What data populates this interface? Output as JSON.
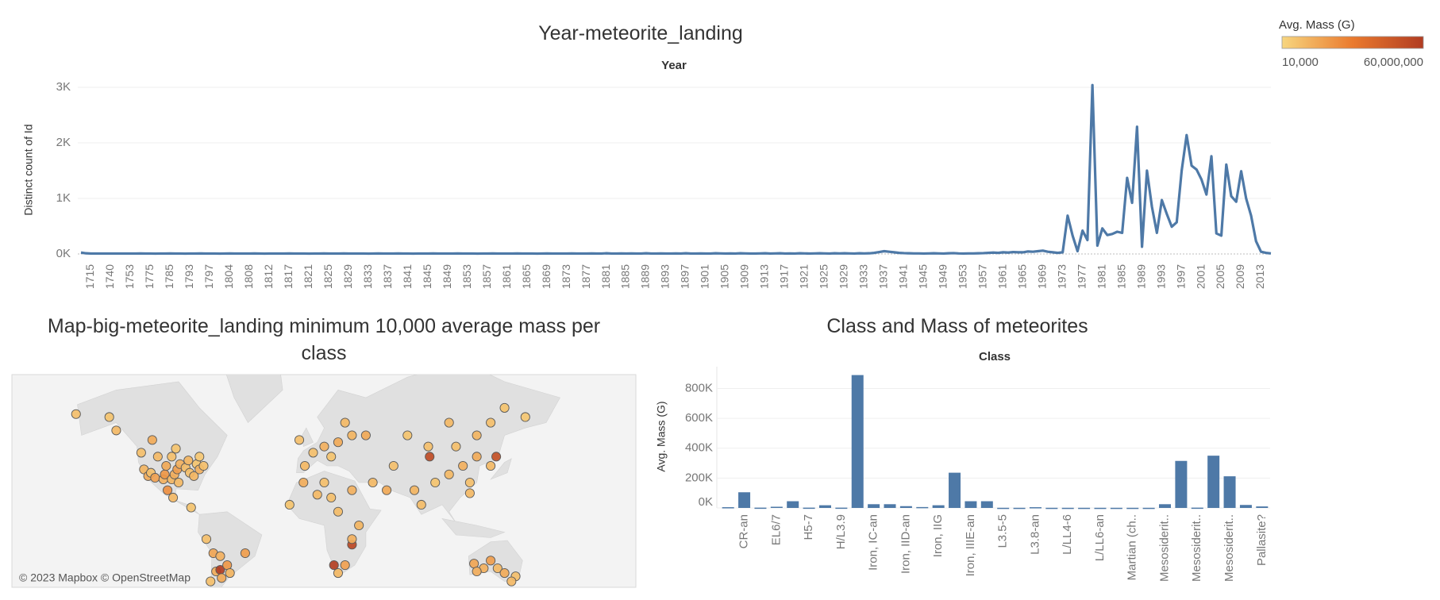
{
  "chart_data": [
    {
      "type": "line",
      "title": "Year-meteorite_landing",
      "header": "Year",
      "y_label": "Distinct count of Id",
      "color": "#4e79a7",
      "ylim": [
        0,
        3100
      ],
      "yticks": [
        {
          "value": 0,
          "label": "0K"
        },
        {
          "value": 1000,
          "label": "1K"
        },
        {
          "value": 2000,
          "label": "2K"
        },
        {
          "value": 3000,
          "label": "3K"
        }
      ],
      "grid": true,
      "categories": [
        null,
        null,
        "1715",
        null,
        null,
        null,
        "1740",
        null,
        null,
        null,
        "1753",
        null,
        null,
        null,
        "1775",
        null,
        null,
        null,
        "1785",
        null,
        null,
        null,
        "1793",
        null,
        null,
        null,
        "1797",
        null,
        null,
        null,
        "1804",
        null,
        null,
        null,
        "1808",
        null,
        null,
        null,
        "1812",
        null,
        null,
        null,
        "1817",
        null,
        null,
        null,
        "1821",
        null,
        null,
        null,
        "1825",
        null,
        null,
        null,
        "1829",
        null,
        null,
        null,
        "1833",
        null,
        null,
        null,
        "1837",
        null,
        null,
        null,
        "1841",
        null,
        null,
        null,
        "1845",
        null,
        null,
        null,
        "1849",
        null,
        null,
        null,
        "1853",
        null,
        null,
        null,
        "1857",
        null,
        null,
        null,
        "1861",
        null,
        null,
        null,
        "1865",
        null,
        null,
        null,
        "1869",
        null,
        null,
        null,
        "1873",
        null,
        null,
        null,
        "1877",
        null,
        null,
        null,
        "1881",
        null,
        null,
        null,
        "1885",
        null,
        null,
        null,
        "1889",
        null,
        null,
        null,
        "1893",
        null,
        null,
        null,
        "1897",
        null,
        null,
        null,
        "1901",
        null,
        null,
        null,
        "1905",
        null,
        null,
        null,
        "1909",
        null,
        null,
        null,
        "1913",
        null,
        null,
        null,
        "1917",
        null,
        null,
        null,
        "1921",
        null,
        null,
        null,
        "1925",
        null,
        null,
        null,
        "1929",
        null,
        null,
        null,
        "1933",
        null,
        null,
        null,
        "1937",
        null,
        null,
        null,
        "1941",
        null,
        null,
        null,
        "1945",
        null,
        null,
        null,
        "1949",
        null,
        null,
        null,
        "1953",
        null,
        null,
        null,
        "1957",
        null,
        null,
        null,
        "1961",
        null,
        null,
        null,
        "1965",
        null,
        null,
        null,
        "1969",
        null,
        null,
        null,
        "1973",
        null,
        null,
        null,
        "1977",
        null,
        null,
        null,
        "1981",
        null,
        null,
        null,
        "1985",
        null,
        null,
        null,
        "1989",
        null,
        null,
        null,
        "1993",
        null,
        null,
        null,
        "1997",
        null,
        null,
        null,
        "2001",
        null,
        null,
        null,
        "2005",
        null,
        null,
        null,
        "2009",
        null,
        null,
        null,
        "2013",
        null,
        null
      ],
      "values": [
        25,
        12,
        8,
        8,
        8,
        8,
        8,
        8,
        8,
        8,
        8,
        8,
        10,
        8,
        8,
        6,
        8,
        8,
        10,
        8,
        8,
        6,
        8,
        8,
        10,
        8,
        8,
        8,
        6,
        8,
        10,
        8,
        8,
        8,
        8,
        10,
        8,
        6,
        8,
        8,
        8,
        8,
        10,
        8,
        8,
        8,
        6,
        8,
        8,
        10,
        8,
        8,
        8,
        10,
        8,
        8,
        8,
        8,
        6,
        8,
        10,
        8,
        8,
        8,
        10,
        8,
        8,
        6,
        8,
        8,
        8,
        10,
        8,
        8,
        8,
        8,
        10,
        8,
        8,
        8,
        6,
        8,
        8,
        10,
        8,
        8,
        8,
        8,
        10,
        8,
        8,
        8,
        6,
        8,
        10,
        8,
        8,
        8,
        8,
        10,
        8,
        8,
        8,
        10,
        8,
        8,
        12,
        8,
        8,
        10,
        8,
        10,
        8,
        8,
        12,
        8,
        8,
        10,
        8,
        8,
        10,
        8,
        12,
        8,
        8,
        10,
        8,
        8,
        12,
        10,
        8,
        10,
        8,
        12,
        10,
        8,
        8,
        10,
        12,
        8,
        10,
        12,
        8,
        10,
        8,
        12,
        10,
        8,
        10,
        12,
        10,
        8,
        12,
        10,
        12,
        10,
        8,
        12,
        10,
        12,
        20,
        35,
        50,
        40,
        30,
        20,
        15,
        12,
        10,
        10,
        8,
        10,
        12,
        10,
        8,
        12,
        15,
        10,
        8,
        10,
        10,
        12,
        15,
        20,
        25,
        20,
        30,
        25,
        35,
        30,
        30,
        45,
        40,
        50,
        60,
        40,
        30,
        20,
        30,
        690,
        330,
        50,
        420,
        250,
        3040,
        150,
        460,
        340,
        360,
        400,
        380,
        1370,
        920,
        2290,
        130,
        1500,
        850,
        380,
        970,
        720,
        490,
        570,
        1500,
        2140,
        1590,
        1520,
        1340,
        1070,
        1760,
        370,
        330,
        1610,
        1040,
        940,
        1490,
        1000,
        690,
        230,
        40,
        20,
        10
      ]
    },
    {
      "type": "map",
      "title": "Map-big-meteorite_landing minimum 10,000 average mass per class",
      "attribution": "© 2023 Mapbox © OpenStreetMap",
      "color_scale": {
        "title": "Avg. Mass (G)",
        "min": {
          "value": 10000,
          "label": "10,000"
        },
        "max": {
          "value": 60000000,
          "label": "60,000,000"
        },
        "colors": [
          "#f7d67f",
          "#ea7a2e",
          "#b13c22"
        ]
      },
      "lon": [
        -169,
        -145,
        -140,
        -122,
        -120,
        -117,
        -115,
        -112,
        -110,
        -106,
        -105,
        -104,
        -100,
        -100,
        -98,
        -97,
        -96,
        -95,
        -94,
        -90,
        -88,
        -87,
        -84,
        -82,
        -80,
        -77,
        -114,
        -80,
        -103,
        -99,
        -86,
        -70,
        -65,
        -68,
        -65,
        -60,
        -58,
        -64,
        -72,
        -47,
        -75,
        -4,
        2,
        10,
        20,
        30,
        15,
        25,
        40,
        -8,
        -5,
        5,
        10,
        30,
        20,
        -15,
        35,
        30,
        25,
        20,
        17,
        15,
        30,
        45,
        55,
        60,
        75,
        80,
        90,
        86,
        100,
        110,
        115,
        120,
        130,
        134,
        85,
        70,
        100,
        130,
        140,
        155,
        120,
        105,
        115,
        118,
        125,
        135,
        140,
        148,
        130,
        145,
        120
      ],
      "lat": [
        63,
        62,
        57,
        47,
        38,
        34,
        36,
        33,
        45,
        32,
        35,
        40,
        32,
        45,
        35,
        49,
        38,
        30,
        41,
        39,
        43,
        36,
        34,
        41,
        38,
        40,
        53,
        45,
        25,
        20,
        13,
        -20,
        -22,
        -32,
        -31,
        -28,
        -33,
        -36,
        -38,
        -20,
        -10,
        40,
        47,
        50,
        52,
        55,
        45,
        60,
        55,
        53,
        30,
        22,
        30,
        25,
        10,
        15,
        0,
        -14,
        -28,
        -33,
        -28,
        20,
        -10,
        30,
        25,
        40,
        25,
        15,
        30,
        45,
        35,
        40,
        30,
        45,
        40,
        45,
        50,
        55,
        60,
        60,
        65,
        62,
        55,
        50,
        23,
        -27,
        -30,
        -30,
        -33,
        -35,
        -25,
        -38,
        -32
      ],
      "mass": [
        30000,
        25000,
        40000,
        30000,
        50000,
        80000,
        30000,
        120000,
        40000,
        60000,
        200000,
        90000,
        50000,
        30000,
        70000,
        25000,
        150000,
        40000,
        60000,
        35000,
        50000,
        30000,
        45000,
        25000,
        60000,
        30000,
        80000,
        20000,
        300000,
        40000,
        25000,
        100000,
        60000,
        80000,
        60000000,
        200000,
        50000,
        90000,
        30000,
        150000,
        30000,
        40000,
        30000,
        60000,
        80000,
        50000,
        25000,
        40000,
        90000,
        30000,
        70000,
        40000,
        30000,
        60000,
        35000,
        25000,
        50000,
        25000000,
        120000,
        40000,
        50000000,
        30000,
        60000,
        40000,
        90000,
        30000,
        50000,
        35000,
        25000,
        20000000,
        40000,
        60000,
        30000,
        80000,
        40000,
        15000000,
        30000,
        25000,
        40000,
        30000,
        25000,
        20000,
        50000,
        30000,
        40000,
        100000,
        60000,
        40000,
        80000,
        30000,
        150000,
        40000,
        70000
      ]
    },
    {
      "type": "bar",
      "title": "Class and Mass of meteorites",
      "header": "Class",
      "y_label": "Avg. Mass (G)",
      "color": "#4e79a7",
      "ylim": [
        0,
        925000
      ],
      "yticks": [
        {
          "value": 0,
          "label": "0K"
        },
        {
          "value": 200000,
          "label": "200K"
        },
        {
          "value": 400000,
          "label": "400K"
        },
        {
          "value": 600000,
          "label": "600K"
        },
        {
          "value": 800000,
          "label": "800K"
        }
      ],
      "grid": true,
      "categories": [
        null,
        "CR-an",
        null,
        "EL6/7",
        null,
        "H5-7",
        null,
        "H/L3.9",
        null,
        "Iron, IC-an",
        null,
        "Iron, IID-an",
        null,
        "Iron, IIG",
        null,
        "Iron, IIIE-an",
        null,
        "L3.5-5",
        null,
        "L3.8-an",
        null,
        "L/LL4-6",
        null,
        "L/LL6-an",
        null,
        "Martian (ch..",
        null,
        "Mesosiderit..",
        null,
        "Mesosiderit..",
        null,
        "Mesosiderit..",
        null,
        "Pallasite?"
      ],
      "values": [
        5000,
        105000,
        2000,
        8000,
        45000,
        2000,
        18000,
        2000,
        890000,
        25000,
        25000,
        12000,
        6000,
        18000,
        236000,
        45000,
        45000,
        1000,
        1000,
        5000,
        1000,
        1000,
        1000,
        1000,
        1000,
        1000,
        1000,
        25000,
        315000,
        2000,
        350000,
        212000,
        20000,
        10000
      ]
    }
  ]
}
